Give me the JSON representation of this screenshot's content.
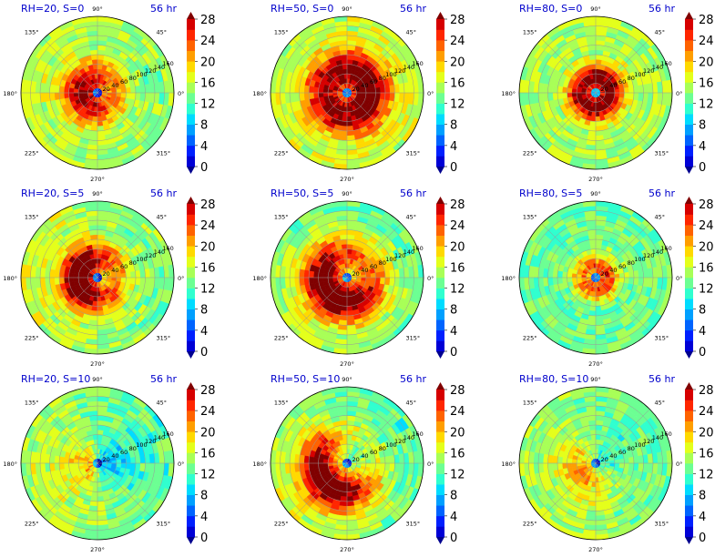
{
  "figure": {
    "time_label": "56 hr",
    "azimuth_labels": [
      "90°",
      "45°",
      "0°",
      "315°",
      "270°",
      "225°",
      "180°",
      "135°"
    ],
    "radial_labels": [
      "20",
      "40",
      "60",
      "80",
      "100",
      "120",
      "140",
      "160"
    ],
    "colorbar_ticks": [
      "0",
      "4",
      "8",
      "12",
      "16",
      "20",
      "24",
      "28"
    ],
    "colorbar_levels": [
      0,
      2,
      4,
      6,
      8,
      10,
      12,
      14,
      16,
      18,
      20,
      22,
      24,
      26,
      28
    ],
    "colormap": [
      "#00008f",
      "#0000d6",
      "#0020ff",
      "#0064ff",
      "#00a0ff",
      "#00dcff",
      "#30ffcf",
      "#6cff93",
      "#a8ff57",
      "#e4ff1b",
      "#ffd900",
      "#ff9e00",
      "#ff6200",
      "#ff2600",
      "#d60000",
      "#800000"
    ],
    "title_color": "#0000cc"
  },
  "chart_data": [
    {
      "type": "heatmap",
      "projection": "polar",
      "title": "RH=20, S=0",
      "time": "56 hr",
      "rlim": [
        0,
        160
      ],
      "zlim": [
        0,
        28
      ],
      "center_value": 4,
      "peak_value": 26,
      "peak_radius": 30,
      "ring_width": 40,
      "background_value": 15,
      "asymmetry_direction_deg": 180,
      "asymmetry_strength": 0.3
    },
    {
      "type": "heatmap",
      "projection": "polar",
      "title": "RH=50, S=0",
      "time": "56 hr",
      "rlim": [
        0,
        160
      ],
      "zlim": [
        0,
        28
      ],
      "center_value": 6,
      "peak_value": 30,
      "peak_radius": 45,
      "ring_width": 45,
      "background_value": 16,
      "asymmetry_direction_deg": 0,
      "asymmetry_strength": 0.1
    },
    {
      "type": "heatmap",
      "projection": "polar",
      "title": "RH=80, S=0",
      "time": "56 hr",
      "rlim": [
        0,
        160
      ],
      "zlim": [
        0,
        28
      ],
      "center_value": 8,
      "peak_value": 30,
      "peak_radius": 30,
      "ring_width": 30,
      "background_value": 15,
      "asymmetry_direction_deg": 0,
      "asymmetry_strength": 0.05
    },
    {
      "type": "heatmap",
      "projection": "polar",
      "title": "RH=20, S=5",
      "time": "56 hr",
      "rlim": [
        0,
        160
      ],
      "zlim": [
        0,
        28
      ],
      "center_value": 4,
      "peak_value": 28,
      "peak_radius": 40,
      "ring_width": 35,
      "background_value": 15,
      "asymmetry_direction_deg": 180,
      "asymmetry_strength": 0.5
    },
    {
      "type": "heatmap",
      "projection": "polar",
      "title": "RH=50, S=5",
      "time": "56 hr",
      "rlim": [
        0,
        160
      ],
      "zlim": [
        0,
        28
      ],
      "center_value": 6,
      "peak_value": 28,
      "peak_radius": 50,
      "ring_width": 45,
      "background_value": 14,
      "asymmetry_direction_deg": 225,
      "asymmetry_strength": 0.4
    },
    {
      "type": "heatmap",
      "projection": "polar",
      "title": "RH=80, S=5",
      "time": "56 hr",
      "rlim": [
        0,
        160
      ],
      "zlim": [
        0,
        28
      ],
      "center_value": 6,
      "peak_value": 24,
      "peak_radius": 25,
      "ring_width": 25,
      "background_value": 13,
      "asymmetry_direction_deg": 0,
      "asymmetry_strength": 0.1
    },
    {
      "type": "heatmap",
      "projection": "polar",
      "title": "RH=20, S=10",
      "time": "56 hr",
      "rlim": [
        0,
        160
      ],
      "zlim": [
        0,
        28
      ],
      "center_value": 3,
      "peak_value": 14,
      "peak_radius": 0,
      "ring_width": 60,
      "background_value": 14,
      "asymmetry_direction_deg": 10,
      "asymmetry_strength": -0.6
    },
    {
      "type": "heatmap",
      "projection": "polar",
      "title": "RH=50, S=10",
      "time": "56 hr",
      "rlim": [
        0,
        160
      ],
      "zlim": [
        0,
        28
      ],
      "center_value": 4,
      "peak_value": 24,
      "peak_radius": 60,
      "ring_width": 40,
      "background_value": 14,
      "asymmetry_direction_deg": 220,
      "asymmetry_strength": 0.7
    },
    {
      "type": "heatmap",
      "projection": "polar",
      "title": "RH=80, S=10",
      "time": "56 hr",
      "rlim": [
        0,
        160
      ],
      "zlim": [
        0,
        28
      ],
      "center_value": 4,
      "peak_value": 16,
      "peak_radius": 40,
      "ring_width": 40,
      "background_value": 14,
      "asymmetry_direction_deg": 30,
      "asymmetry_strength": -0.4
    }
  ]
}
